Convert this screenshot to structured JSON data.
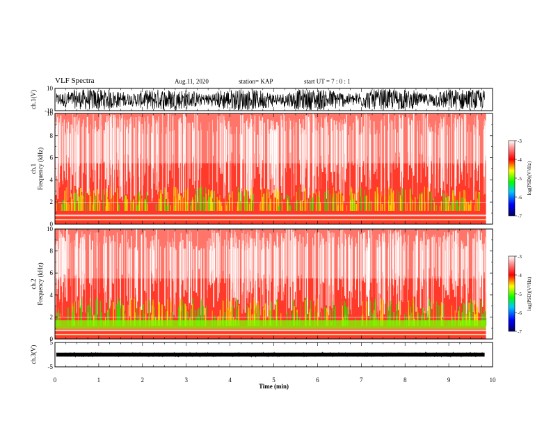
{
  "header": {
    "title": "VLF Spectra",
    "date": "Aug.11, 2020",
    "station": "station= KAP",
    "start": "start  UT =   7 : 0  : 1"
  },
  "chart_data": [
    {
      "type": "line",
      "name": "ch1-waveform",
      "ylabel": "ch.1(V)",
      "ylim": [
        -10,
        10
      ],
      "yticks": [
        "10",
        "-10"
      ],
      "xlim": [
        0,
        10
      ],
      "color": "#000000"
    },
    {
      "type": "heatmap",
      "name": "ch1-spectrogram",
      "ylabel_top": "ch.1",
      "ylabel": "Frequency (kHz)",
      "ylim": [
        0,
        10
      ],
      "yticks": [
        "0",
        "2",
        "4",
        "6",
        "8",
        "10"
      ],
      "xlim": [
        0,
        9.85
      ],
      "colorbar": {
        "label": "log(PSD)(V²/Hz)",
        "range": [
          -7,
          -3
        ],
        "ticks": [
          "-3",
          "-4",
          "-5",
          "-6",
          "-7"
        ],
        "colors": [
          "#000080",
          "#0000ff",
          "#00c0ff",
          "#00ff00",
          "#ffff00",
          "#ff0000",
          "#ffffff"
        ]
      }
    },
    {
      "type": "heatmap",
      "name": "ch2-spectrogram",
      "ylabel_top": "ch.2",
      "ylabel": "Frequency (kHz)",
      "ylim": [
        0,
        10
      ],
      "yticks": [
        "0",
        "2",
        "4",
        "6",
        "8",
        "10"
      ],
      "xlim": [
        0,
        9.85
      ],
      "colorbar": {
        "label": "log(PSD)(V²/Hz)",
        "range": [
          -7,
          -3
        ],
        "ticks": [
          "-3",
          "-4",
          "-5",
          "-6",
          "-7"
        ],
        "colors": [
          "#000080",
          "#0000ff",
          "#00c0ff",
          "#00ff00",
          "#ffff00",
          "#ff0000",
          "#ffffff"
        ]
      }
    },
    {
      "type": "line",
      "name": "ch3-waveform",
      "ylabel": "ch.3(V)",
      "ylim": [
        -5,
        5
      ],
      "yticks": [
        "5",
        "-5"
      ],
      "xlim": [
        0,
        10
      ],
      "color": "#000000"
    }
  ],
  "xaxis": {
    "label": "Time  (min)",
    "range": [
      0,
      10
    ],
    "ticks": [
      "0",
      "1",
      "2",
      "3",
      "4",
      "5",
      "6",
      "7",
      "8",
      "9",
      "10"
    ]
  }
}
